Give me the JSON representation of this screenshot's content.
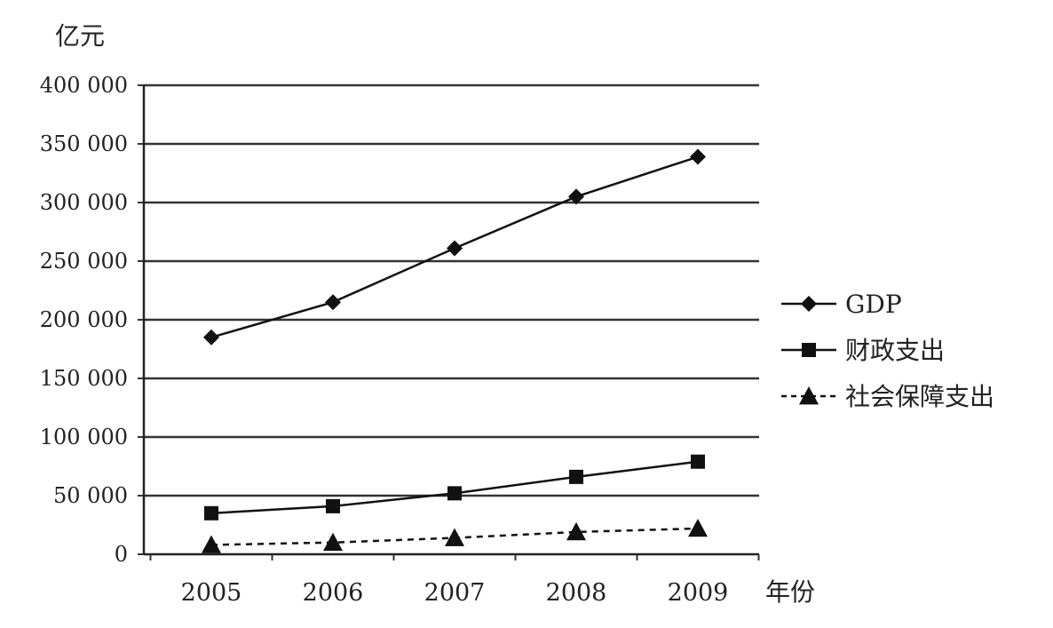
{
  "chart_data": {
    "type": "line",
    "ylabel": "亿元",
    "xlabel": "年份",
    "categories": [
      "2005",
      "2006",
      "2007",
      "2008",
      "2009"
    ],
    "ylim": [
      0,
      400000
    ],
    "yticks": [
      0,
      50000,
      100000,
      150000,
      200000,
      250000,
      300000,
      350000,
      400000
    ],
    "ytick_labels": [
      "0",
      "50 000",
      "100 000",
      "150 000",
      "200 000",
      "250 000",
      "300 000",
      "350 000",
      "400 000"
    ],
    "grid": true,
    "legend_position": "right",
    "series": [
      {
        "name": "GDP",
        "marker": "diamond",
        "line": "solid",
        "values": [
          185000,
          215000,
          261000,
          305000,
          339000
        ]
      },
      {
        "name": "财政支出",
        "marker": "square",
        "line": "solid",
        "values": [
          35000,
          41000,
          52000,
          66000,
          79000
        ]
      },
      {
        "name": "社会保障支出",
        "marker": "triangle",
        "line": "dashed",
        "values": [
          8000,
          10000,
          14000,
          19000,
          22000
        ]
      }
    ]
  }
}
